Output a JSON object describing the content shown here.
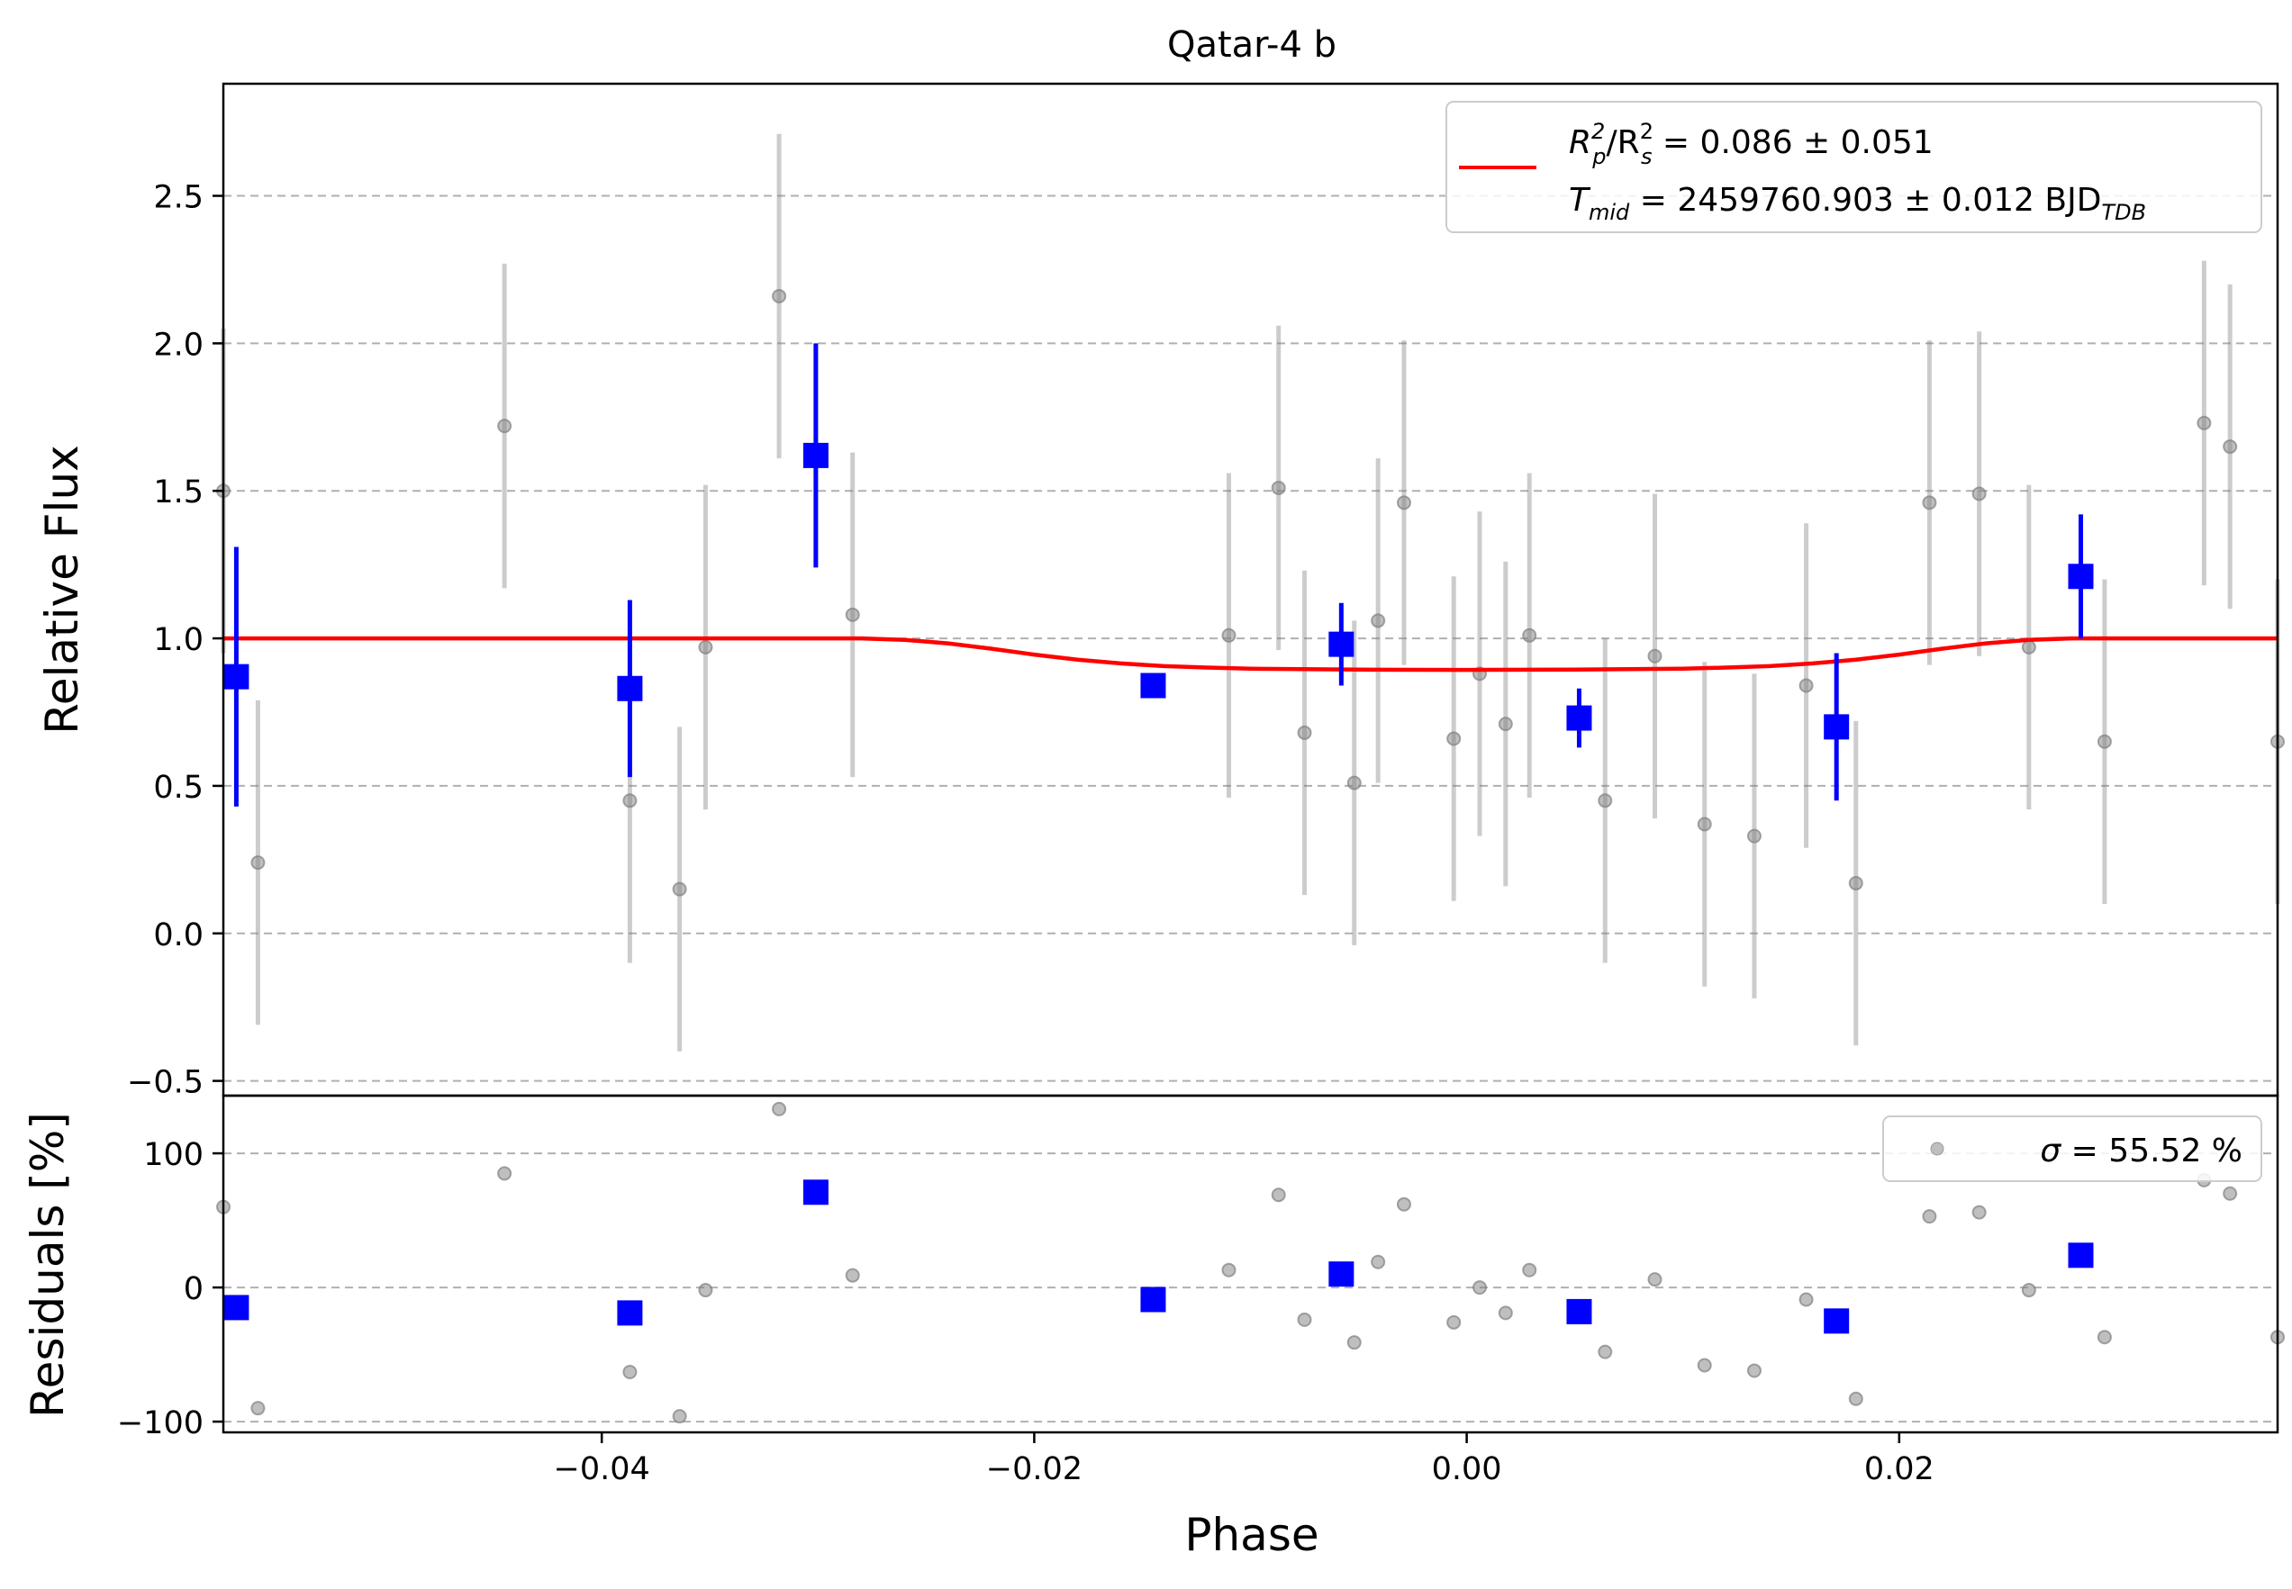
{
  "chart_data": [
    {
      "type": "scatter",
      "panel": "main",
      "title": "Qatar-4 b",
      "xlabel": "Phase",
      "ylabel": "Relative Flux",
      "xlim": [
        -0.0575,
        0.0375
      ],
      "ylim": [
        -0.55,
        2.88
      ],
      "xticks": [
        -0.04,
        -0.02,
        0.0,
        0.02
      ],
      "xtick_labels": [
        "−0.04",
        "−0.02",
        "0.00",
        "0.02"
      ],
      "yticks": [
        -0.5,
        0.0,
        0.5,
        1.0,
        1.5,
        2.0,
        2.5
      ],
      "ytick_labels": [
        "−0.5",
        "0.0",
        "0.5",
        "1.0",
        "1.5",
        "2.0",
        "2.5"
      ],
      "grid": "horizontal dashed",
      "legend": {
        "placement": "top-right",
        "line1_pre": "R",
        "line1_sub1": "p",
        "line1_sup1": "2",
        "line1_mid": "/R",
        "line1_sub2": "s",
        "line1_sup2": "2",
        "line1_post": " = 0.086 ± 0.051",
        "line2_pre": "T",
        "line2_sub1": "mid",
        "line2_post": " = 2459760.903 ± 0.012 BJD",
        "line2_sub2": "TDB"
      },
      "series": [
        {
          "kind": "raw",
          "color": "#808080",
          "points": [
            {
              "x": -0.0575,
              "y": 1.5,
              "err": 0.55
            },
            {
              "x": -0.0559,
              "y": 0.24,
              "err": 0.55
            },
            {
              "x": -0.0445,
              "y": 1.72,
              "err": 0.55
            },
            {
              "x": -0.0387,
              "y": 0.45,
              "err": 0.55
            },
            {
              "x": -0.0364,
              "y": 0.15,
              "err": 0.55
            },
            {
              "x": -0.0352,
              "y": 0.97,
              "err": 0.55
            },
            {
              "x": -0.0318,
              "y": 2.16,
              "err": 0.55
            },
            {
              "x": -0.0284,
              "y": 1.08,
              "err": 0.55
            },
            {
              "x": -0.011,
              "y": 1.01,
              "err": 0.55
            },
            {
              "x": -0.0087,
              "y": 1.51,
              "err": 0.55
            },
            {
              "x": -0.0075,
              "y": 0.68,
              "err": 0.55
            },
            {
              "x": -0.0052,
              "y": 0.51,
              "err": 0.55
            },
            {
              "x": -0.0041,
              "y": 1.06,
              "err": 0.55
            },
            {
              "x": -0.0029,
              "y": 1.46,
              "err": 0.55
            },
            {
              "x": -0.0006,
              "y": 0.66,
              "err": 0.55
            },
            {
              "x": 0.0006,
              "y": 0.88,
              "err": 0.55
            },
            {
              "x": 0.0018,
              "y": 0.71,
              "err": 0.55
            },
            {
              "x": 0.0029,
              "y": 1.01,
              "err": 0.55
            },
            {
              "x": 0.0064,
              "y": 0.45,
              "err": 0.55
            },
            {
              "x": 0.0087,
              "y": 0.94,
              "err": 0.55
            },
            {
              "x": 0.011,
              "y": 0.37,
              "err": 0.55
            },
            {
              "x": 0.0133,
              "y": 0.33,
              "err": 0.55
            },
            {
              "x": 0.0157,
              "y": 0.84,
              "err": 0.55
            },
            {
              "x": 0.018,
              "y": 0.17,
              "err": 0.55
            },
            {
              "x": 0.0214,
              "y": 1.46,
              "err": 0.55
            },
            {
              "x": 0.0237,
              "y": 1.49,
              "err": 0.55
            },
            {
              "x": 0.026,
              "y": 0.97,
              "err": 0.55
            },
            {
              "x": 0.0295,
              "y": 0.65,
              "err": 0.55
            },
            {
              "x": 0.0341,
              "y": 1.73,
              "err": 0.55
            },
            {
              "x": 0.0353,
              "y": 1.65,
              "err": 0.55
            },
            {
              "x": 0.0375,
              "y": 0.65,
              "err": 0.55
            }
          ]
        },
        {
          "kind": "binned",
          "color": "#0000ff",
          "points": [
            {
              "x": -0.0569,
              "y": 0.87,
              "err": 0.44
            },
            {
              "x": -0.0387,
              "y": 0.83,
              "err": 0.3
            },
            {
              "x": -0.0301,
              "y": 1.62,
              "err": 0.38
            },
            {
              "x": -0.0145,
              "y": 0.84,
              "err": 0.0
            },
            {
              "x": -0.0058,
              "y": 0.98,
              "err": 0.14
            },
            {
              "x": 0.0052,
              "y": 0.73,
              "err": 0.1
            },
            {
              "x": 0.0171,
              "y": 0.7,
              "err": 0.25
            },
            {
              "x": 0.0284,
              "y": 1.21,
              "err": 0.21
            }
          ]
        },
        {
          "kind": "model",
          "color": "#ff0000",
          "points": [
            {
              "x": -0.0575,
              "y": 1.0
            },
            {
              "x": -0.028,
              "y": 1.0
            },
            {
              "x": -0.026,
              "y": 0.995
            },
            {
              "x": -0.024,
              "y": 0.983
            },
            {
              "x": -0.022,
              "y": 0.965
            },
            {
              "x": -0.02,
              "y": 0.945
            },
            {
              "x": -0.018,
              "y": 0.928
            },
            {
              "x": -0.016,
              "y": 0.915
            },
            {
              "x": -0.014,
              "y": 0.906
            },
            {
              "x": -0.012,
              "y": 0.901
            },
            {
              "x": -0.01,
              "y": 0.897
            },
            {
              "x": -0.005,
              "y": 0.894
            },
            {
              "x": 0.0,
              "y": 0.893
            },
            {
              "x": 0.005,
              "y": 0.894
            },
            {
              "x": 0.01,
              "y": 0.897
            },
            {
              "x": 0.012,
              "y": 0.901
            },
            {
              "x": 0.014,
              "y": 0.906
            },
            {
              "x": 0.016,
              "y": 0.915
            },
            {
              "x": 0.018,
              "y": 0.928
            },
            {
              "x": 0.02,
              "y": 0.945
            },
            {
              "x": 0.022,
              "y": 0.965
            },
            {
              "x": 0.024,
              "y": 0.983
            },
            {
              "x": 0.026,
              "y": 0.995
            },
            {
              "x": 0.028,
              "y": 1.0
            },
            {
              "x": 0.0375,
              "y": 1.0
            }
          ]
        }
      ]
    },
    {
      "type": "scatter",
      "panel": "residuals",
      "xlabel": "Phase",
      "ylabel": "Residuals [%]",
      "xlim": [
        -0.0575,
        0.0375
      ],
      "ylim": [
        -108,
        143
      ],
      "yticks": [
        -100,
        0,
        100
      ],
      "ytick_labels": [
        "−100",
        "0",
        "100"
      ],
      "grid": "horizontal dashed",
      "legend": {
        "placement": "top-right",
        "sigma_symbol": "σ",
        "sigma_text": " = 55.52 %"
      },
      "series": [
        {
          "kind": "raw",
          "color": "#808080",
          "points": [
            {
              "x": -0.0575,
              "y": 60
            },
            {
              "x": -0.0559,
              "y": -90
            },
            {
              "x": -0.0445,
              "y": 85
            },
            {
              "x": -0.0387,
              "y": -63
            },
            {
              "x": -0.0364,
              "y": -96
            },
            {
              "x": -0.0352,
              "y": -2
            },
            {
              "x": -0.0318,
              "y": 133
            },
            {
              "x": -0.0284,
              "y": 9
            },
            {
              "x": -0.011,
              "y": 13
            },
            {
              "x": -0.0087,
              "y": 69
            },
            {
              "x": -0.0075,
              "y": -24
            },
            {
              "x": -0.0052,
              "y": -41
            },
            {
              "x": -0.0041,
              "y": 19
            },
            {
              "x": -0.0029,
              "y": 62
            },
            {
              "x": -0.0006,
              "y": -26
            },
            {
              "x": 0.0006,
              "y": 0
            },
            {
              "x": 0.0018,
              "y": -19
            },
            {
              "x": 0.0029,
              "y": 13
            },
            {
              "x": 0.0064,
              "y": -48
            },
            {
              "x": 0.0087,
              "y": 6
            },
            {
              "x": 0.011,
              "y": -58
            },
            {
              "x": 0.0133,
              "y": -62
            },
            {
              "x": 0.0157,
              "y": -9
            },
            {
              "x": 0.018,
              "y": -83
            },
            {
              "x": 0.0214,
              "y": 53
            },
            {
              "x": 0.0237,
              "y": 56
            },
            {
              "x": 0.026,
              "y": -2
            },
            {
              "x": 0.0295,
              "y": -37
            },
            {
              "x": 0.0341,
              "y": 80
            },
            {
              "x": 0.0353,
              "y": 70
            },
            {
              "x": 0.0375,
              "y": -37
            }
          ]
        },
        {
          "kind": "binned",
          "color": "#0000ff",
          "points": [
            {
              "x": -0.0569,
              "y": -15
            },
            {
              "x": -0.0387,
              "y": -19
            },
            {
              "x": -0.0301,
              "y": 71
            },
            {
              "x": -0.0145,
              "y": -9
            },
            {
              "x": -0.0058,
              "y": 10
            },
            {
              "x": 0.0052,
              "y": -18
            },
            {
              "x": 0.0171,
              "y": -25
            },
            {
              "x": 0.0284,
              "y": 24
            }
          ]
        }
      ]
    }
  ]
}
